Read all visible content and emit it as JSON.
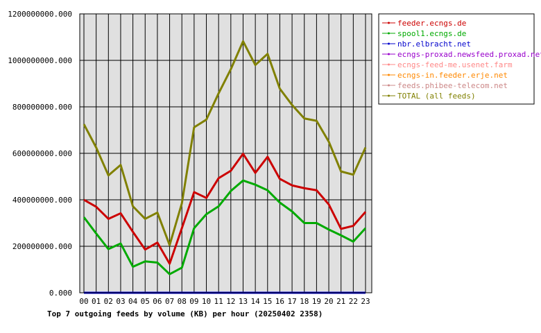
{
  "chart_data": {
    "type": "line",
    "title": "Top 7 outgoing feeds by volume (KB) per hour (20250402 2358)",
    "xlabel": "",
    "ylabel": "",
    "categories": [
      "00",
      "01",
      "02",
      "03",
      "04",
      "05",
      "06",
      "07",
      "08",
      "09",
      "10",
      "11",
      "12",
      "13",
      "14",
      "15",
      "16",
      "17",
      "18",
      "19",
      "20",
      "21",
      "22",
      "23"
    ],
    "ylim": [
      0,
      1200000000
    ],
    "yticks": [
      "0.000",
      "200000000.000",
      "400000000.000",
      "600000000.000",
      "800000000.000",
      "1000000000.000",
      "1200000000.000"
    ],
    "grid": true,
    "legend_position": "top-right",
    "series": [
      {
        "name": "feeder.ecngs.de",
        "color": "#cc0000",
        "values": [
          400000000,
          370000000,
          318000000,
          342000000,
          262000000,
          186000000,
          216000000,
          125000000,
          278000000,
          433000000,
          408000000,
          493000000,
          525000000,
          598000000,
          516000000,
          585000000,
          490000000,
          462000000,
          450000000,
          441000000,
          380000000,
          275000000,
          288000000,
          348000000
        ]
      },
      {
        "name": "spool1.ecngs.de",
        "color": "#00aa00",
        "values": [
          325000000,
          255000000,
          188000000,
          212000000,
          112000000,
          135000000,
          130000000,
          80000000,
          108000000,
          278000000,
          338000000,
          372000000,
          438000000,
          483000000,
          465000000,
          441000000,
          388000000,
          350000000,
          300000000,
          300000000,
          272000000,
          247000000,
          220000000,
          278000000
        ]
      },
      {
        "name": "nbr.elbracht.net",
        "color": "#0000cc",
        "values": [
          0,
          0,
          0,
          0,
          0,
          0,
          0,
          0,
          0,
          0,
          0,
          0,
          0,
          0,
          0,
          0,
          0,
          0,
          0,
          0,
          0,
          0,
          0,
          0
        ]
      },
      {
        "name": "ecngs-proxad.newsfeed.proxad.net",
        "color": "#9900cc",
        "values": [
          0,
          0,
          0,
          0,
          0,
          0,
          0,
          0,
          0,
          0,
          0,
          0,
          0,
          0,
          0,
          0,
          0,
          0,
          0,
          0,
          0,
          0,
          0,
          0
        ]
      },
      {
        "name": "ecngs-feed-me.usenet.farm",
        "color": "#ff8888",
        "values": [
          0,
          0,
          0,
          0,
          0,
          0,
          0,
          0,
          0,
          0,
          0,
          0,
          0,
          0,
          0,
          0,
          0,
          0,
          0,
          0,
          0,
          0,
          0,
          0
        ]
      },
      {
        "name": "ecngs-in.feeder.erje.net",
        "color": "#ff8800",
        "values": [
          0,
          0,
          0,
          0,
          0,
          0,
          0,
          0,
          0,
          0,
          0,
          0,
          0,
          0,
          0,
          0,
          0,
          0,
          0,
          0,
          0,
          0,
          0,
          0
        ]
      },
      {
        "name": "feeds.phibee-telecom.net",
        "color": "#cc8888",
        "values": [
          0,
          0,
          0,
          0,
          0,
          0,
          0,
          0,
          0,
          0,
          0,
          0,
          0,
          0,
          0,
          0,
          0,
          0,
          0,
          0,
          0,
          0,
          0,
          0
        ]
      },
      {
        "name": "TOTAL (all feeds)",
        "color": "#808000",
        "values": [
          725000000,
          625000000,
          505000000,
          550000000,
          372000000,
          318000000,
          345000000,
          205000000,
          385000000,
          712000000,
          745000000,
          858000000,
          962000000,
          1082000000,
          980000000,
          1028000000,
          878000000,
          808000000,
          750000000,
          740000000,
          650000000,
          522000000,
          508000000,
          625000000
        ]
      }
    ]
  }
}
